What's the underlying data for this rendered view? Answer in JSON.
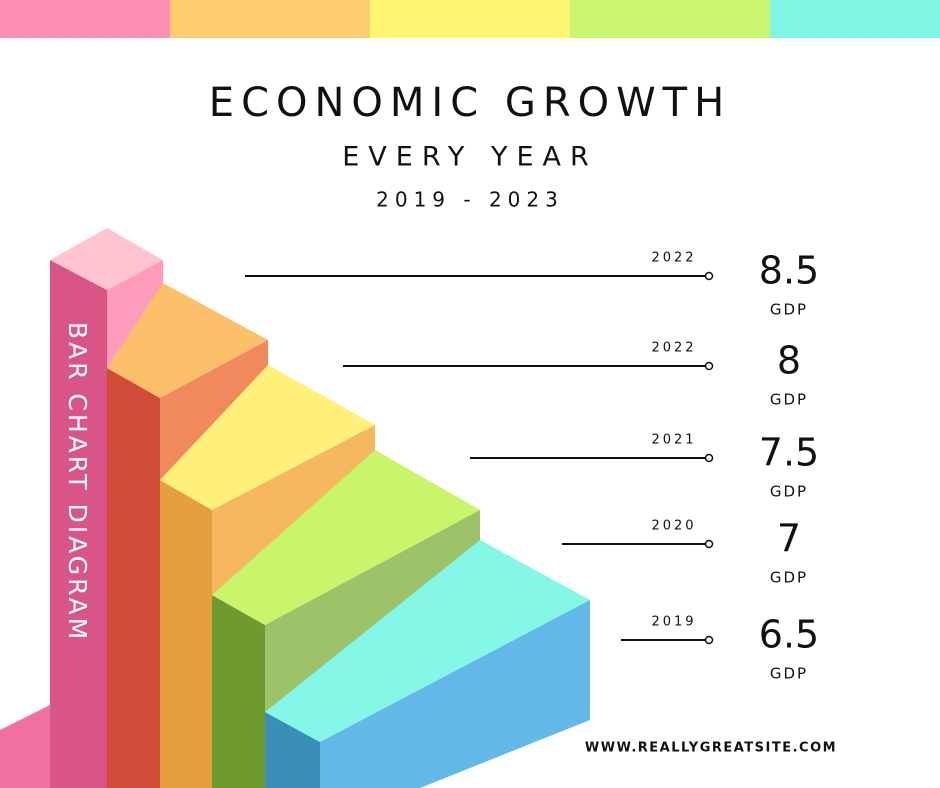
{
  "header": {
    "title": "ECONOMIC GROWTH",
    "subtitle": "EVERY YEAR",
    "period": "2019 - 2023"
  },
  "side_label": "BAR CHART DIAGRAM",
  "rows": [
    {
      "year": "2022",
      "value": 8.5,
      "unit": "GDP"
    },
    {
      "year": "2022",
      "value": 8,
      "unit": "GDP"
    },
    {
      "year": "2021",
      "value": 7.5,
      "unit": "GDP"
    },
    {
      "year": "2020",
      "value": 7,
      "unit": "GDP"
    },
    {
      "year": "2019",
      "value": 6.5,
      "unit": "GDP"
    }
  ],
  "footer": "WWW.REALLYGREATSITE.COM"
}
